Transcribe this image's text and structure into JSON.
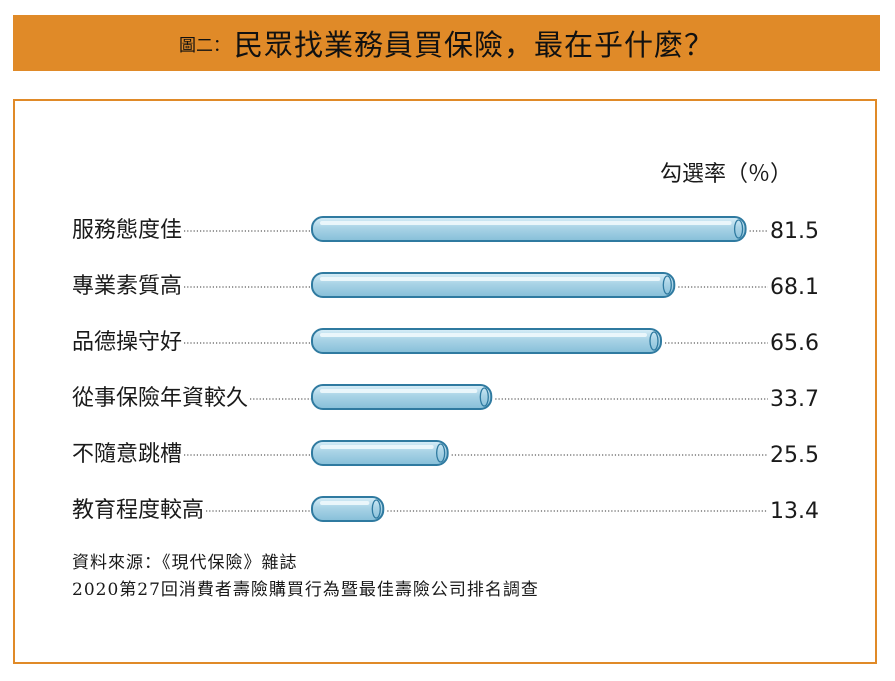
{
  "header": {
    "figure_label": "圖二：",
    "title": "民眾找業務員買保險，最在乎什麼？"
  },
  "chart_data": {
    "type": "bar",
    "orientation": "horizontal",
    "title": "民眾找業務員買保險，最在乎什麼？",
    "unit_label": "勾選率（％）",
    "categories": [
      "服務態度佳",
      "專業素質高",
      "品德操守好",
      "從事保險年資較久",
      "不隨意跳槽",
      "教育程度較高"
    ],
    "values": [
      81.5,
      68.1,
      65.6,
      33.7,
      25.5,
      13.4
    ],
    "value_labels": [
      "81.5",
      "68.1",
      "65.6",
      "33.7",
      "25.5",
      "13.4"
    ],
    "xlim": [
      0,
      100
    ],
    "grid": false,
    "bar_color": "#a9d3e6",
    "bar_stroke": "#2f7aa0",
    "leader_color": "#333333"
  },
  "source": {
    "line1": "資料來源：《現代保險》雜誌",
    "line2": "2020第27回消費者壽險購買行為暨最佳壽險公司排名調查"
  },
  "colors": {
    "accent": "#e08a28"
  }
}
